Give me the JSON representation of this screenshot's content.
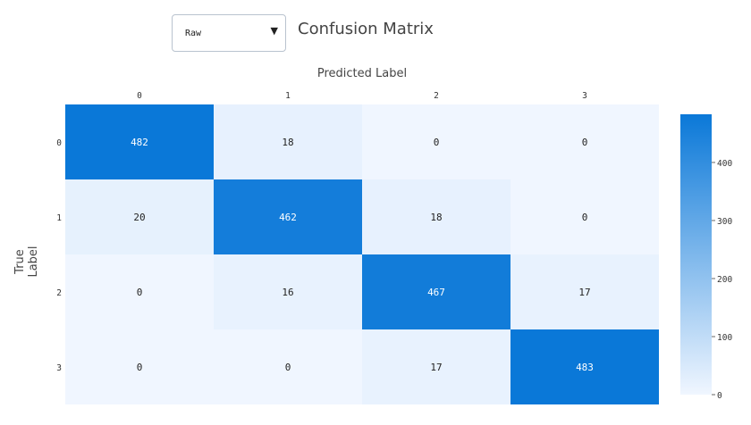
{
  "controls": {
    "mode_select": {
      "value": "Raw"
    }
  },
  "chart_data": {
    "type": "heatmap",
    "title": "Confusion Matrix",
    "xlabel": "Predicted Label",
    "ylabel": "True Label",
    "x_categories": [
      "0",
      "1",
      "2",
      "3"
    ],
    "y_categories": [
      "0",
      "1",
      "2",
      "3"
    ],
    "values": [
      [
        482,
        18,
        0,
        0
      ],
      [
        20,
        462,
        18,
        0
      ],
      [
        0,
        16,
        467,
        17
      ],
      [
        0,
        0,
        17,
        483
      ]
    ],
    "colorbar": {
      "min": 0,
      "max": 483,
      "ticks": [
        0,
        100,
        200,
        300,
        400
      ],
      "colors": {
        "low": "#f0f6ff",
        "high": "#0a78d8"
      }
    },
    "legend_position": "right"
  }
}
